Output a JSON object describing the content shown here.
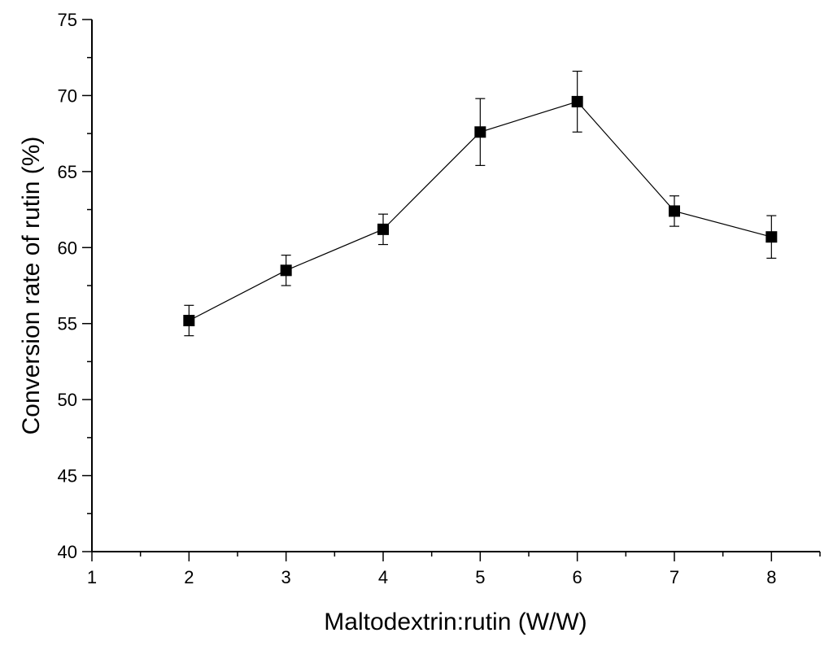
{
  "chart_data": {
    "type": "line",
    "title": "",
    "xlabel": "Maltodextrin:rutin (W/W)",
    "ylabel": "Conversion rate of rutin (%)",
    "xlim": [
      1,
      8.5
    ],
    "ylim": [
      40,
      75
    ],
    "xticks": [
      1,
      2,
      3,
      4,
      5,
      6,
      7,
      8
    ],
    "yticks": [
      40,
      45,
      50,
      55,
      60,
      65,
      70,
      75
    ],
    "grid": false,
    "legend": "none",
    "series": [
      {
        "marker": "square",
        "color": "#000000",
        "x": [
          2,
          3,
          4,
          5,
          6,
          7,
          8
        ],
        "y": [
          55.2,
          58.5,
          61.2,
          67.6,
          69.6,
          62.4,
          60.7
        ],
        "err_low": [
          1.0,
          1.0,
          1.0,
          2.2,
          2.0,
          1.0,
          1.4
        ],
        "err_high": [
          1.0,
          1.0,
          1.0,
          2.2,
          2.0,
          1.0,
          1.4
        ]
      }
    ]
  }
}
